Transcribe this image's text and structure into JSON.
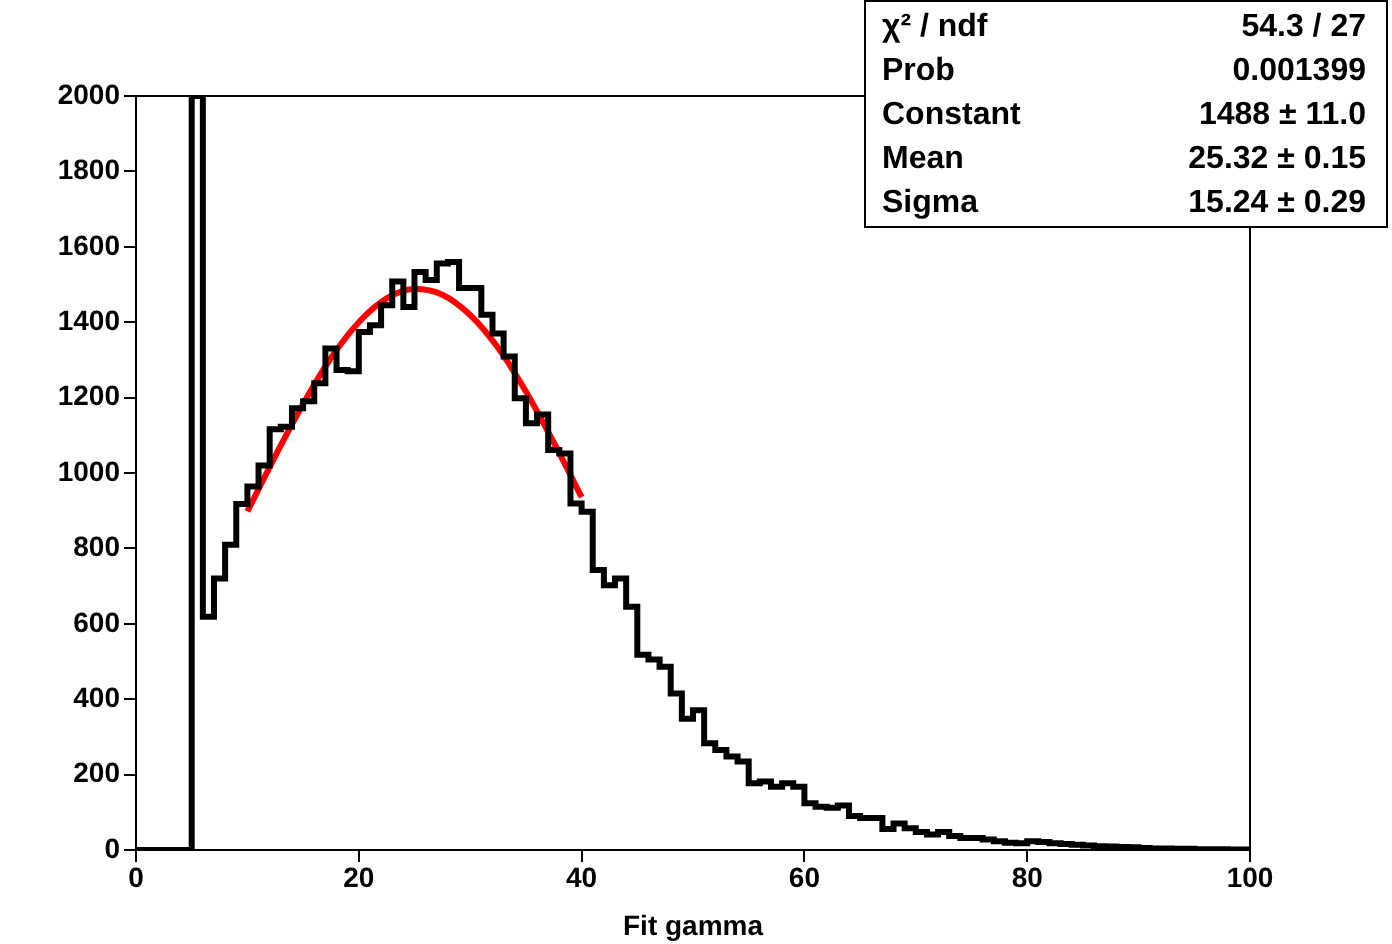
{
  "chart_data": {
    "type": "histogram",
    "xlabel": "Fit gamma",
    "bins": [
      0,
      1,
      2,
      3,
      4,
      5,
      6,
      7,
      8,
      9,
      10,
      11,
      12,
      13,
      14,
      15,
      16,
      17,
      18,
      19,
      20,
      21,
      22,
      23,
      24,
      25,
      26,
      27,
      28,
      29,
      30,
      31,
      32,
      33,
      34,
      35,
      36,
      37,
      38,
      39,
      40,
      41,
      42,
      43,
      44,
      45,
      46,
      47,
      48,
      49,
      50,
      51,
      52,
      53,
      54,
      55,
      56,
      57,
      58,
      59,
      60,
      61,
      62,
      63,
      64,
      65,
      66,
      67,
      68,
      69,
      70,
      71,
      72,
      73,
      74,
      75,
      76,
      77,
      78,
      79,
      80,
      81,
      82,
      83,
      84,
      85,
      86,
      87,
      88,
      89,
      90,
      91,
      92,
      93,
      94,
      95,
      96,
      97,
      98,
      99,
      100
    ],
    "series": [
      {
        "type": "histogram",
        "color": "#000000",
        "values": [
          0,
          0,
          0,
          0,
          0,
          2000,
          619,
          720,
          810,
          918,
          964,
          1020,
          1116,
          1123,
          1172,
          1190,
          1238,
          1330,
          1273,
          1270,
          1374,
          1392,
          1445,
          1508,
          1440,
          1533,
          1512,
          1556,
          1560,
          1491,
          1491,
          1420,
          1370,
          1309,
          1198,
          1132,
          1155,
          1061,
          1052,
          919,
          897,
          743,
          702,
          720,
          645,
          518,
          505,
          486,
          415,
          348,
          371,
          283,
          265,
          248,
          235,
          177,
          182,
          168,
          177,
          168,
          124,
          115,
          112,
          118,
          90,
          85,
          85,
          56,
          70,
          58,
          48,
          41,
          48,
          37,
          32,
          32,
          28,
          23,
          19,
          18,
          23,
          21,
          18,
          16,
          14,
          12,
          10,
          9,
          8,
          7,
          5,
          4,
          4,
          3,
          3,
          2,
          2,
          2,
          1,
          1
        ]
      },
      {
        "type": "line",
        "color": "#ff0000",
        "x": [
          10,
          12.5,
          15,
          17.5,
          20,
          22.5,
          25,
          27.5,
          30,
          32.5,
          35,
          37.5,
          40
        ],
        "values": [
          898,
          1045,
          1183,
          1305,
          1400,
          1463,
          1488,
          1473,
          1419,
          1332,
          1216,
          1081,
          936
        ]
      }
    ],
    "xlim": [
      0,
      100
    ],
    "xticks": [
      0,
      20,
      40,
      60,
      80,
      100
    ],
    "ylim": [
      0,
      2000
    ],
    "yticks": [
      0,
      200,
      400,
      600,
      800,
      1000,
      1200,
      1400,
      1600,
      1800,
      2000
    ],
    "grid": false,
    "legend": false,
    "annotations": [
      "χ² / ndf",
      "54.3 / 27",
      "Prob",
      "0.001399",
      "Constant",
      "1488 ± 11.0",
      "Mean",
      "25.32 ± 0.15",
      "Sigma",
      "15.24 ± 0.29"
    ]
  }
}
